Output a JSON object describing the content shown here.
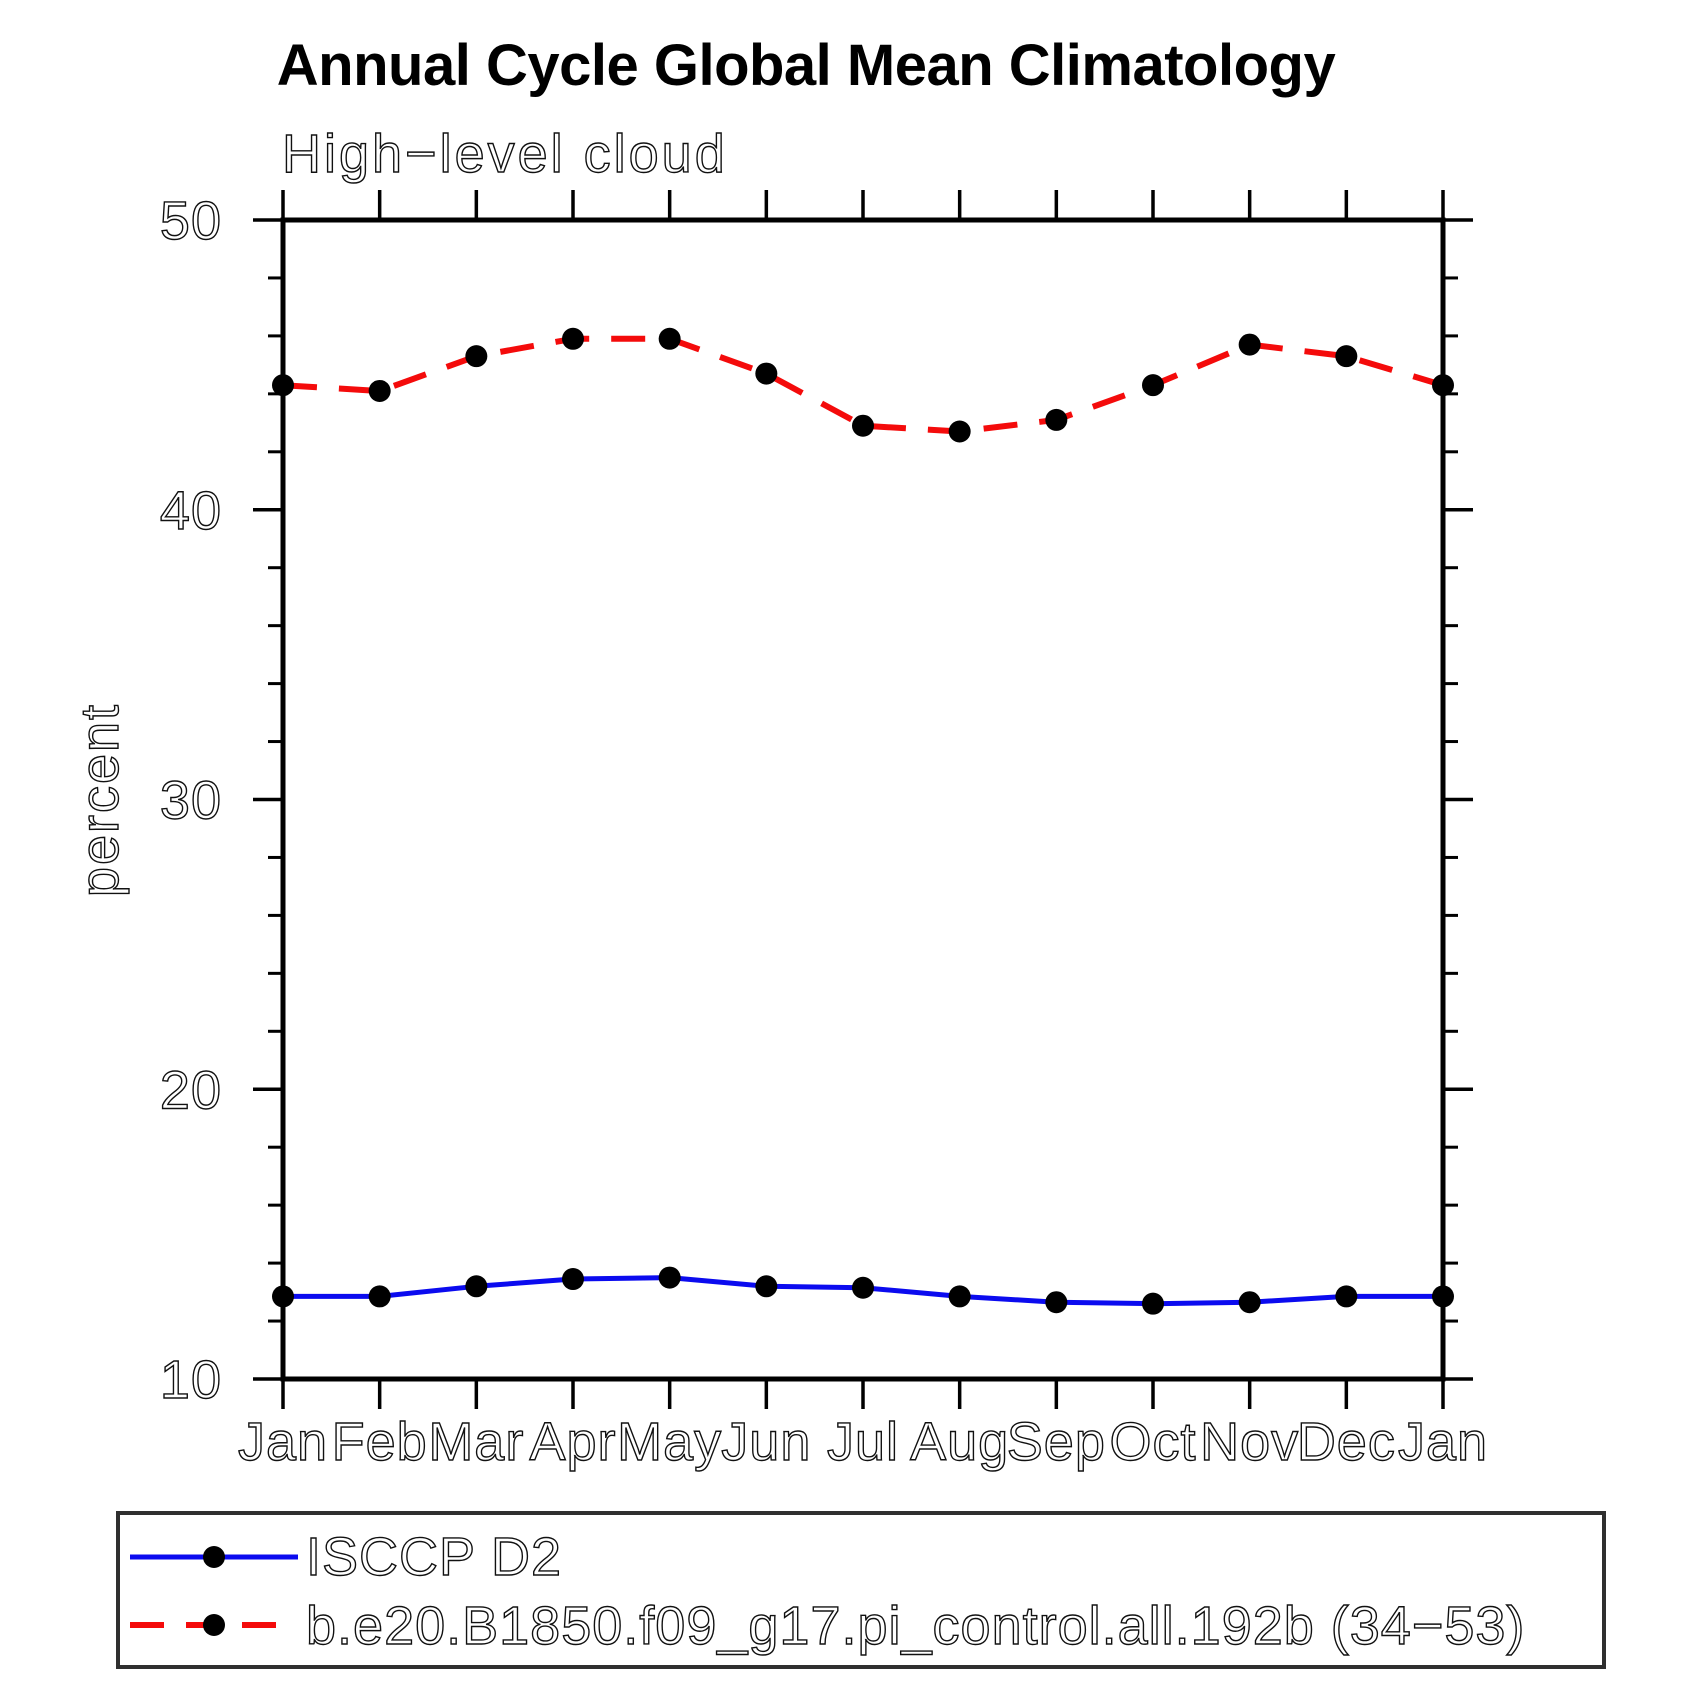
{
  "chart_data": {
    "type": "line",
    "title": "Annual Cycle Global Mean Climatology",
    "subtitle": "High−level cloud",
    "xlabel": "",
    "ylabel": "percent",
    "categories": [
      "Jan",
      "Feb",
      "Mar",
      "Apr",
      "May",
      "Jun",
      "Jul",
      "Aug",
      "Sep",
      "Oct",
      "Nov",
      "Dec",
      "Jan"
    ],
    "ylim": [
      10,
      50
    ],
    "yticks_major": [
      10,
      20,
      30,
      40,
      50
    ],
    "ytick_labels": [
      "10",
      "20",
      "30",
      "40",
      "50"
    ],
    "ytick_minor_step": 2,
    "grid": false,
    "legend_position": "below-left",
    "marker": "filled-circle",
    "marker_color": "#000000",
    "series": [
      {
        "name": "ISCCP D2",
        "color": "#0b0bef",
        "line_style": "solid",
        "values": [
          12.85,
          12.85,
          13.2,
          13.45,
          13.5,
          13.2,
          13.15,
          12.85,
          12.65,
          12.6,
          12.65,
          12.85,
          12.85
        ]
      },
      {
        "name": "b.e20.B1850.f09_g17.pi_control.all.192b (34−53)",
        "color": "#f40b0b",
        "line_style": "dashed",
        "values": [
          44.3,
          44.1,
          45.3,
          45.9,
          45.9,
          44.7,
          42.9,
          42.7,
          43.1,
          44.3,
          45.7,
          45.3,
          44.3
        ]
      }
    ]
  }
}
